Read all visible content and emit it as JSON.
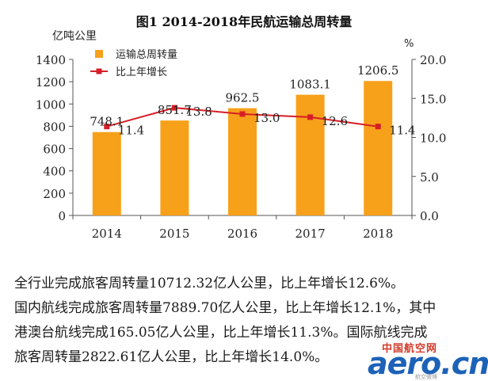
{
  "chart_data": {
    "type": "bar",
    "title": "图1 2014-2018年民航运输总周转量",
    "ylabel_left": "亿吨公里",
    "ylabel_right": "%",
    "categories": [
      "2014",
      "2015",
      "2016",
      "2017",
      "2018"
    ],
    "ylim_left": [
      0,
      1400
    ],
    "yticks_left": [
      "0",
      "200",
      "400",
      "600",
      "800",
      "1000",
      "1200",
      "1400"
    ],
    "ylim_right": [
      0,
      20
    ],
    "yticks_right": [
      "0.0",
      "5.0",
      "10.0",
      "15.0",
      "20.0"
    ],
    "legend_position": "top-left",
    "series": [
      {
        "name": "运输总周转量",
        "type": "bar",
        "axis": "left",
        "color": "#f7a11a",
        "values": [
          748.1,
          851.7,
          962.5,
          1083.1,
          1206.5
        ],
        "labels": [
          "748.1",
          "851.7",
          "962.5",
          "1083.1",
          "1206.5"
        ]
      },
      {
        "name": "比上年增长",
        "type": "line",
        "axis": "right",
        "color": "#d61f26",
        "values": [
          11.4,
          13.8,
          13.0,
          12.6,
          11.4
        ],
        "labels": [
          "11.4",
          "13.8",
          "13.0",
          "12.6",
          "11.4"
        ]
      }
    ]
  },
  "text": {
    "line1": "全行业完成旅客周转量10712.32亿人公里，比上年增长12.6%。",
    "line2": "国内航线完成旅客周转量7889.70亿人公里，比上年增长12.1%，其中",
    "line3": "港澳台航线完成165.05亿人公里，比上年增长11.3%。国际航线完成",
    "line4": "旅客周转量2822.61亿人公里，比上年增长14.0%。"
  },
  "watermark": {
    "cn": "中国航空网",
    "logo": "aero.cn",
    "sub": "航空微博"
  }
}
